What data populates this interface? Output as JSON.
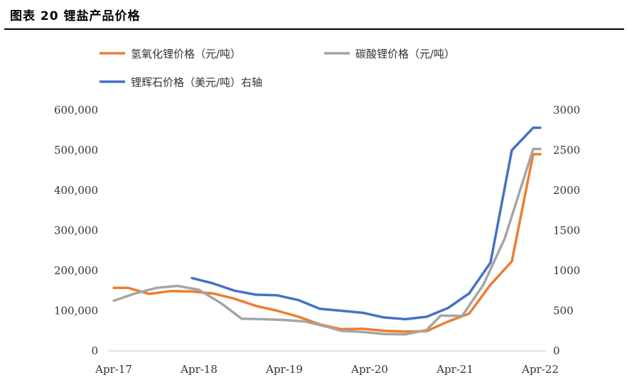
{
  "figure": {
    "title": "图表 20  锂盐产品价格"
  },
  "chart_data": {
    "type": "line",
    "x": [
      "2017-04",
      "2017-07",
      "2017-10",
      "2018-01",
      "2018-04",
      "2018-07",
      "2018-10",
      "2019-01",
      "2019-04",
      "2019-07",
      "2019-10",
      "2020-01",
      "2020-04",
      "2020-07",
      "2020-10",
      "2021-01",
      "2021-04",
      "2021-07",
      "2021-10",
      "2022-01",
      "2022-04"
    ],
    "xticks": [
      "Apr-17",
      "Apr-18",
      "Apr-19",
      "Apr-20",
      "Apr-21",
      "Apr-22"
    ],
    "y_left_ticks": [
      "0",
      "100,000",
      "200,000",
      "300,000",
      "400,000",
      "500,000",
      "600,000"
    ],
    "y_right_ticks": [
      "0",
      "500",
      "1000",
      "1500",
      "2000",
      "2500",
      "3000"
    ],
    "ylim_left": [
      0,
      600000
    ],
    "ylim_right": [
      0,
      3000
    ],
    "grid": false,
    "legend_position": "top",
    "series": [
      {
        "name": "氢氧化锂价格（元/吨）",
        "axis": "left",
        "color": "#ED7D31",
        "points": [
          [
            "2017-04",
            157000
          ],
          [
            "2017-06",
            157000
          ],
          [
            "2017-09",
            142000
          ],
          [
            "2017-12",
            149000
          ],
          [
            "2018-03",
            148000
          ],
          [
            "2018-06",
            143000
          ],
          [
            "2018-09",
            130000
          ],
          [
            "2018-12",
            112000
          ],
          [
            "2019-03",
            100000
          ],
          [
            "2019-06",
            85000
          ],
          [
            "2019-09",
            66000
          ],
          [
            "2019-12",
            54000
          ],
          [
            "2020-03",
            55000
          ],
          [
            "2020-06",
            50000
          ],
          [
            "2020-09",
            48000
          ],
          [
            "2020-12",
            49000
          ],
          [
            "2021-03",
            73000
          ],
          [
            "2021-06",
            93000
          ],
          [
            "2021-09",
            165000
          ],
          [
            "2021-12",
            223000
          ],
          [
            "2022-03",
            490000
          ],
          [
            "2022-04",
            490000
          ]
        ]
      },
      {
        "name": "碳酸锂价格（元/吨）",
        "axis": "left",
        "color": "#A5A5A5",
        "points": [
          [
            "2017-04",
            125000
          ],
          [
            "2017-07",
            143000
          ],
          [
            "2017-10",
            157000
          ],
          [
            "2018-01",
            162000
          ],
          [
            "2018-04",
            152000
          ],
          [
            "2018-07",
            120000
          ],
          [
            "2018-10",
            80000
          ],
          [
            "2019-01",
            79000
          ],
          [
            "2019-04",
            77000
          ],
          [
            "2019-07",
            73000
          ],
          [
            "2019-10",
            60000
          ],
          [
            "2019-12",
            50000
          ],
          [
            "2020-03",
            47000
          ],
          [
            "2020-06",
            42000
          ],
          [
            "2020-09",
            41000
          ],
          [
            "2020-12",
            52000
          ],
          [
            "2021-02",
            88000
          ],
          [
            "2021-05",
            87000
          ],
          [
            "2021-08",
            165000
          ],
          [
            "2021-11",
            280000
          ],
          [
            "2022-03",
            503000
          ],
          [
            "2022-04",
            503000
          ]
        ]
      },
      {
        "name": "锂辉石价格（美元/吨）右轴",
        "axis": "right",
        "color": "#4472C4",
        "points": [
          [
            "2018-03",
            908
          ],
          [
            "2018-06",
            840
          ],
          [
            "2018-09",
            750
          ],
          [
            "2018-12",
            700
          ],
          [
            "2019-03",
            692
          ],
          [
            "2019-06",
            632
          ],
          [
            "2019-09",
            525
          ],
          [
            "2019-12",
            500
          ],
          [
            "2020-03",
            475
          ],
          [
            "2020-06",
            417
          ],
          [
            "2020-09",
            395
          ],
          [
            "2020-12",
            425
          ],
          [
            "2021-03",
            533
          ],
          [
            "2021-06",
            717
          ],
          [
            "2021-09",
            1100
          ],
          [
            "2021-12",
            2500
          ],
          [
            "2022-03",
            2780
          ],
          [
            "2022-04",
            2780
          ]
        ]
      }
    ]
  }
}
